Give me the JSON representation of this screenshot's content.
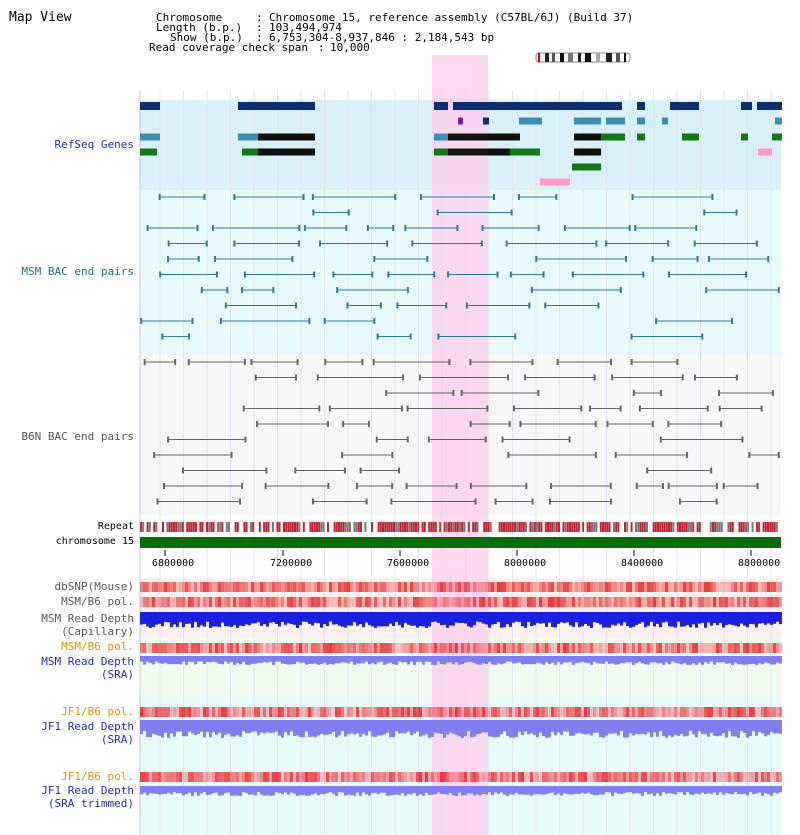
{
  "app": {
    "title": "Map View"
  },
  "info": {
    "chromosome_label": "Chromosome",
    "chromosome_value": "Chromosome 15, reference assembly (C57BL/6J) (Build 37)",
    "length_label": "Length (b.p.)",
    "length_value": "103,494,974",
    "show_label": "Show (b.p.)",
    "show_value": "6,753,304-8,937,846 : 2,184,543 bp",
    "coverage_label": "Read coverage check span",
    "coverage_value": "10,000"
  },
  "tracks": {
    "refseq": "RefSeq Genes",
    "msm_bac": "MSM BAC end pairs",
    "b6n_bac": "B6N BAC end pairs",
    "repeat": "Repeat",
    "chromosome": "chromosome 15",
    "dbsnp": "dbSNP(Mouse)",
    "msm_pol": "MSM/B6 pol.",
    "msm_depth_cap_1": "MSM Read Depth",
    "msm_depth_cap_2": "(Capillary)",
    "msm_pol_sra": "MSM/B6 pol.",
    "msm_depth_sra_1": "MSM Read Depth",
    "msm_depth_sra_2": "(SRA)",
    "jf1_pol": "JF1/B6 pol.",
    "jf1_depth_1": "JF1 Read Depth",
    "jf1_depth_2": "(SRA)",
    "jf1_pol_trim": "JF1/B6 pol.",
    "jf1_trim_1": "JF1 Read Depth",
    "jf1_trim_2": "(SRA trimmed)"
  },
  "axis": {
    "ticks": [
      "6800000",
      "7200000",
      "7600000",
      "8000000",
      "8400000",
      "8800000"
    ]
  },
  "colors": {
    "gene_navy": "#0d2f6e",
    "gene_teal": "#3b8fb4",
    "gene_green": "#147814",
    "highlight_pink": "#ffccee",
    "refseq_bg": "#d9f0fb",
    "bac_bg": "#e7f9fb",
    "msm_bac_line": "#2c7b9c",
    "b6n_bac_line": "#666666",
    "chromosome_green": "#0a6f0a",
    "repeat_red": "#c0272d",
    "snp_red": "#e83a3a",
    "depth_blue": "#1a22e0",
    "depth_light_blue": "#7f7ff0"
  }
}
